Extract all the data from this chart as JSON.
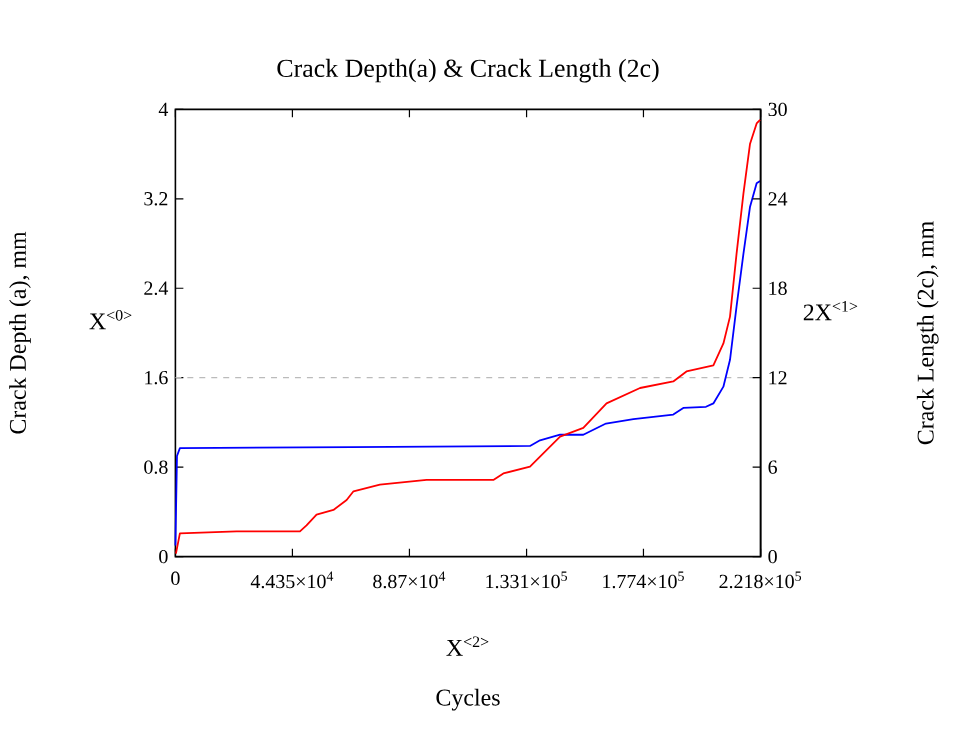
{
  "chart_data": {
    "type": "line",
    "title": "Crack Depth(a) & Crack Length (2c)",
    "xlabel": "Cycles",
    "ylabel": "Crack Depth (a), mm",
    "y2label": "Crack Length (2c), mm",
    "annotations": [
      "X$^{<0>}$",
      "2X$^{<1>}$",
      "X$^{<2>}$"
    ],
    "xlim": [
      0,
      221800
    ],
    "xticks": [
      0,
      {
        "value": 44350,
        "label": "4.435×10$^{4}$"
      },
      {
        "value": 88700,
        "label": "8.87×10$^{4}$"
      },
      {
        "value": 133100,
        "label": "1.331×10$^{5}$"
      },
      {
        "value": 177400,
        "label": "1.774×10$^{5}$"
      },
      {
        "value": 221800,
        "label": "2.218×10$^{5}$"
      }
    ],
    "ylim": [
      0,
      4
    ],
    "yticks": [
      0,
      0.8,
      1.6,
      2.4,
      3.2,
      4
    ],
    "y2lim": [
      0,
      30
    ],
    "y2ticks": [
      0,
      6,
      12,
      18,
      24,
      30
    ],
    "ref_lines": [
      {
        "axis": "y",
        "value": 1.6,
        "color": "#bbbbbb",
        "line_style": "dashed"
      }
    ],
    "series": [
      {
        "color": "#0000ff",
        "x": [
          0,
          600,
          1700,
          66900,
          134400,
          138200,
          145800,
          154600,
          163200,
          173600,
          188700,
          192500,
          201100,
          203900,
          207700,
          210200,
          212700,
          215300,
          217800,
          220300,
          221600
        ],
        "values": [
          0.1,
          0.9,
          0.97,
          0.98,
          0.99,
          1.04,
          1.09,
          1.09,
          1.19,
          1.23,
          1.27,
          1.33,
          1.34,
          1.37,
          1.52,
          1.76,
          2.24,
          2.71,
          3.13,
          3.34,
          3.36
        ]
      },
      {
        "color": "#ff0000",
        "axis": "y2",
        "x": [
          200,
          1700,
          23200,
          47200,
          49700,
          53500,
          59900,
          64900,
          67500,
          77500,
          95200,
          120500,
          124300,
          134400,
          138200,
          145800,
          154600,
          163400,
          176100,
          188700,
          193700,
          203900,
          207700,
          210200,
          212700,
          215300,
          217800,
          220300,
          221600
        ],
        "values": [
          0.2,
          1.56,
          1.69,
          1.69,
          2.09,
          2.82,
          3.13,
          3.8,
          4.38,
          4.83,
          5.14,
          5.14,
          5.58,
          6.04,
          6.71,
          8.05,
          8.63,
          10.28,
          11.31,
          11.75,
          12.42,
          12.83,
          14.3,
          16.1,
          20.34,
          24.37,
          27.7,
          29.06,
          29.3
        ]
      }
    ]
  }
}
